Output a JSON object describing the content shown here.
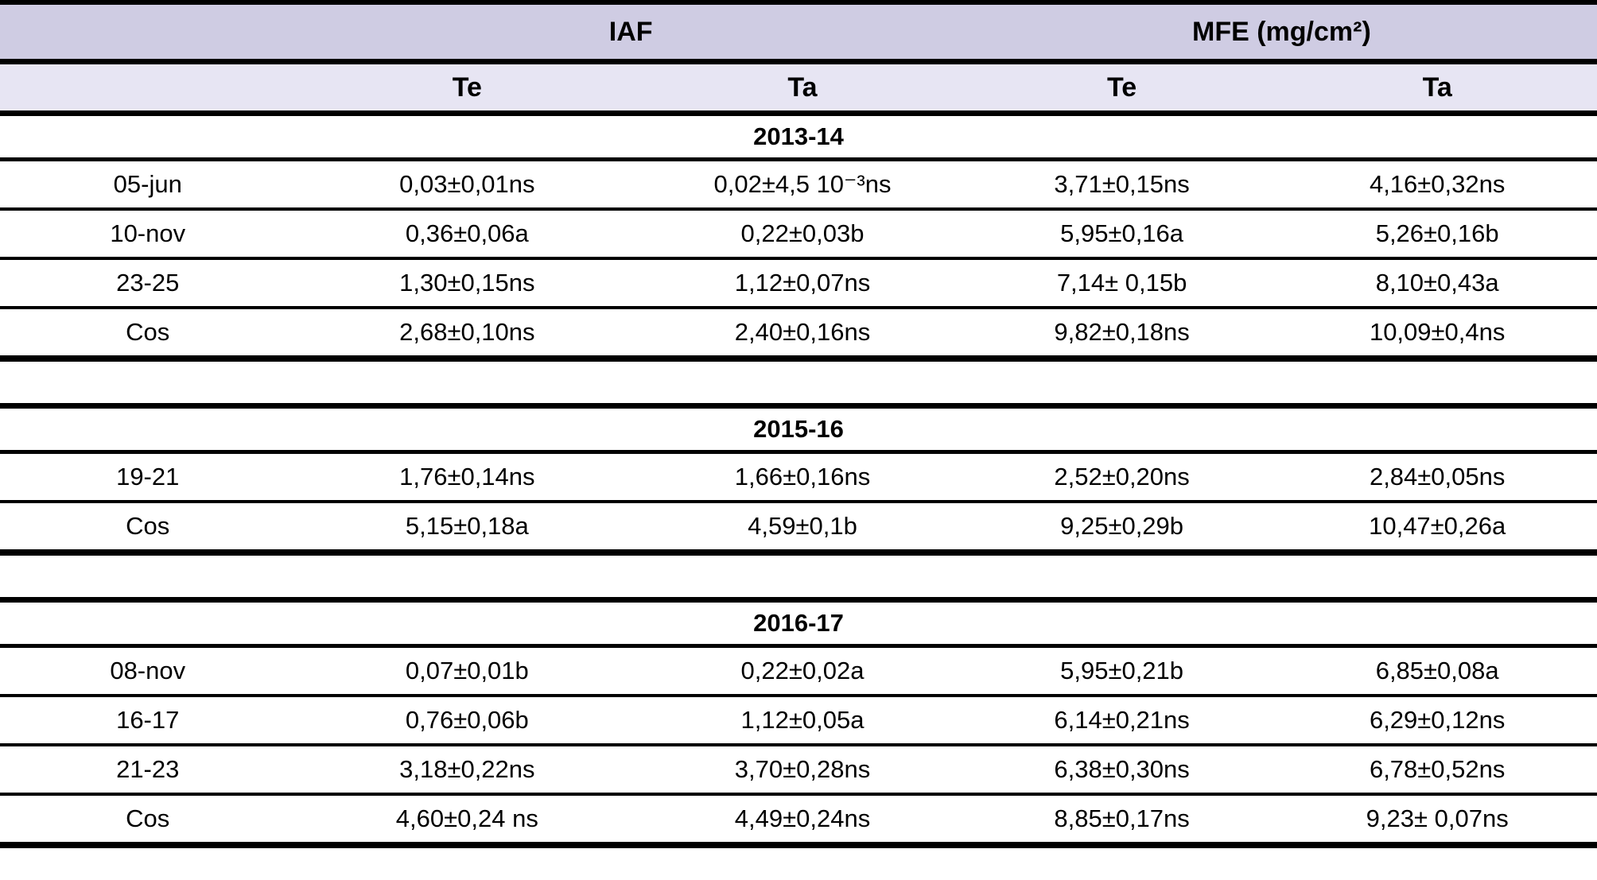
{
  "page": {
    "background": "#ffffff"
  },
  "table": {
    "group_headers": {
      "iaf": "IAF",
      "mfe": "MFE (mg/cm²)"
    },
    "sub_headers": [
      "Te",
      "Ta",
      "Te",
      "Ta"
    ],
    "colors": {
      "group_header_bg": "#cfcce3",
      "sub_header_bg": "#e7e5f3",
      "border": "#000000",
      "row_bg": "#ffffff",
      "text": "#000000"
    },
    "sections": [
      {
        "year": "2013-14",
        "rows": [
          {
            "label": "05-jun",
            "cells": [
              "0,03±0,01ns",
              "0,02±4,5 10⁻³ns",
              "3,71±0,15ns",
              "4,16±0,32ns"
            ]
          },
          {
            "label": "10-nov",
            "cells": [
              "0,36±0,06a",
              "0,22±0,03b",
              "5,95±0,16a",
              "5,26±0,16b"
            ]
          },
          {
            "label": "23-25",
            "cells": [
              "1,30±0,15ns",
              "1,12±0,07ns",
              "7,14± 0,15b",
              "8,10±0,43a"
            ]
          },
          {
            "label": "Cos",
            "cells": [
              "2,68±0,10ns",
              "2,40±0,16ns",
              "9,82±0,18ns",
              "10,09±0,4ns"
            ]
          }
        ]
      },
      {
        "year": "2015-16",
        "rows": [
          {
            "label": "19-21",
            "cells": [
              "1,76±0,14ns",
              "1,66±0,16ns",
              "2,52±0,20ns",
              "2,84±0,05ns"
            ]
          },
          {
            "label": "Cos",
            "cells": [
              "5,15±0,18a",
              "4,59±0,1b",
              "9,25±0,29b",
              "10,47±0,26a"
            ]
          }
        ]
      },
      {
        "year": "2016-17",
        "rows": [
          {
            "label": "08-nov",
            "cells": [
              "0,07±0,01b",
              "0,22±0,02a",
              "5,95±0,21b",
              "6,85±0,08a"
            ]
          },
          {
            "label": "16-17",
            "cells": [
              "0,76±0,06b",
              "1,12±0,05a",
              "6,14±0,21ns",
              "6,29±0,12ns"
            ]
          },
          {
            "label": "21-23",
            "cells": [
              "3,18±0,22ns",
              "3,70±0,28ns",
              "6,38±0,30ns",
              "6,78±0,52ns"
            ]
          },
          {
            "label": "Cos",
            "cells": [
              "4,60±0,24 ns",
              "4,49±0,24ns",
              "8,85±0,17ns",
              "9,23± 0,07ns"
            ]
          }
        ]
      }
    ]
  }
}
